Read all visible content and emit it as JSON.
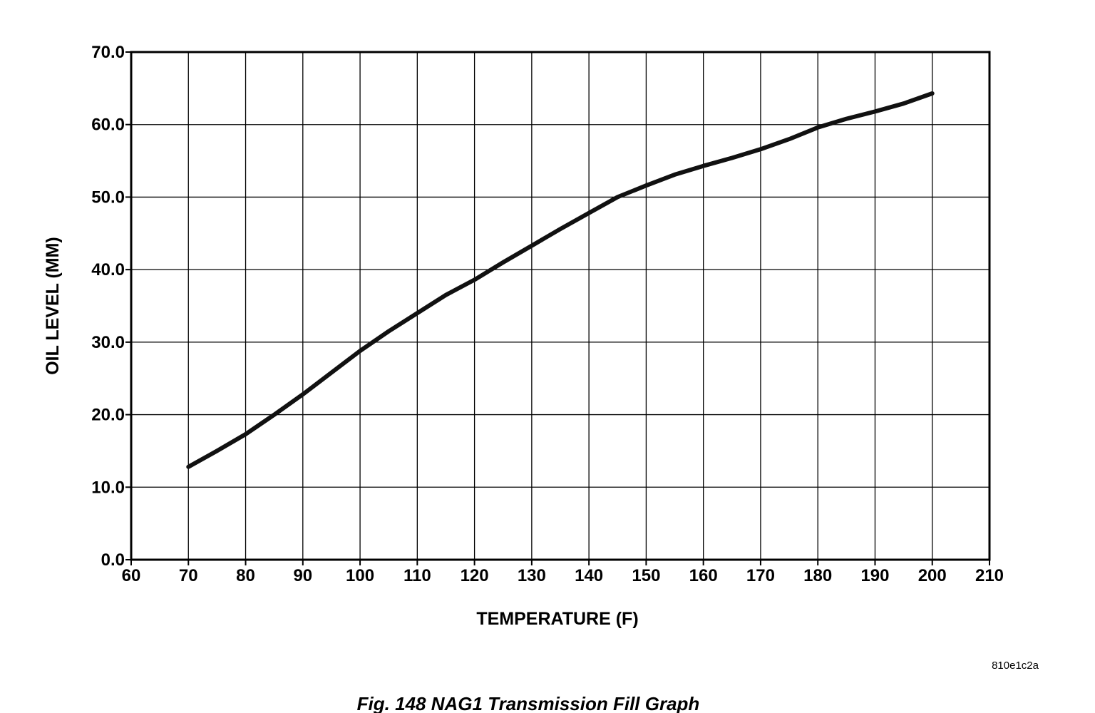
{
  "chart_data": {
    "type": "line",
    "xlabel": "TEMPERATURE  (F)",
    "ylabel": "OIL LEVEL (MM)",
    "xlim": [
      60,
      210
    ],
    "ylim": [
      0,
      70
    ],
    "xticks": [
      60,
      70,
      80,
      90,
      100,
      110,
      120,
      130,
      140,
      150,
      160,
      170,
      180,
      190,
      200,
      210
    ],
    "xtick_labels": [
      "60",
      "70",
      "80",
      "90",
      "100",
      "110",
      "120",
      "130",
      "140",
      "150",
      "160",
      "170",
      "180",
      "190",
      "200",
      "210"
    ],
    "yticks": [
      0,
      10,
      20,
      30,
      40,
      50,
      60,
      70
    ],
    "ytick_labels": [
      "0.0",
      "10.0",
      "20.0",
      "30.0",
      "40.0",
      "50.0",
      "60.0",
      "70.0"
    ],
    "grid": true,
    "series": [
      {
        "x": [
          70,
          75,
          80,
          85,
          90,
          95,
          100,
          105,
          110,
          115,
          120,
          125,
          130,
          135,
          140,
          145,
          150,
          155,
          160,
          165,
          170,
          175,
          180,
          185,
          190,
          195,
          200
        ],
        "y": [
          12.8,
          15.0,
          17.3,
          20.0,
          22.8,
          25.8,
          28.8,
          31.5,
          34.0,
          36.5,
          38.6,
          41.0,
          43.3,
          45.6,
          47.8,
          50.0,
          51.6,
          53.1,
          54.3,
          55.4,
          56.6,
          58.0,
          59.6,
          60.8,
          61.8,
          62.9,
          64.3
        ]
      }
    ],
    "line_color": "#111111"
  },
  "figure_code": "810e1c2a",
  "caption": "Fig. 148 NAG1 Transmission Fill Graph"
}
